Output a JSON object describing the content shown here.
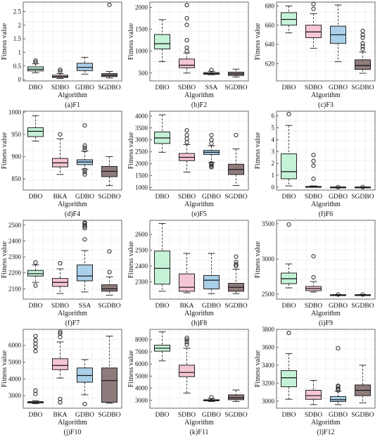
{
  "panel_style": {
    "box_colors": [
      "#c4f2d6",
      "#f5c6d3",
      "#aad0ea",
      "#8e7b7b"
    ],
    "outline": "#222222",
    "grid": "#e6e6e6"
  },
  "chart_data": [
    {
      "type": "box",
      "caption": "(a)F1",
      "ylabel": "Fitness value",
      "xlabel": "Algorithm",
      "ylim": [
        -0.05,
        2.85
      ],
      "yticks": [
        "0",
        "0.5",
        "1",
        "1.5",
        "2",
        "2.5"
      ],
      "ytick_values": [
        0,
        0.5,
        1,
        1.5,
        2,
        2.5
      ],
      "categories": [
        "DBO",
        "SDBO",
        "GDBO",
        "SGDBO"
      ],
      "boxes": [
        {
          "min": 0.25,
          "q1": 0.32,
          "median": 0.38,
          "q3": 0.47,
          "max": 0.58,
          "outliers": [
            0.64,
            0.7
          ]
        },
        {
          "min": 0.04,
          "q1": 0.08,
          "median": 0.11,
          "q3": 0.16,
          "max": 0.22,
          "outliers": [
            0.3,
            0.36
          ]
        },
        {
          "min": 0.2,
          "q1": 0.33,
          "median": 0.45,
          "q3": 0.6,
          "max": 0.82,
          "outliers": []
        },
        {
          "min": 0.06,
          "q1": 0.11,
          "median": 0.16,
          "q3": 0.22,
          "max": 0.3,
          "outliers": [
            2.75
          ]
        }
      ]
    },
    {
      "type": "box",
      "caption": "(b)F2",
      "ylabel": "Fitness value",
      "xlabel": "Algorithm",
      "ylim": [
        320,
        2120
      ],
      "yticks": [
        "500",
        "1000",
        "1500",
        "2000"
      ],
      "ytick_values": [
        500,
        1000,
        1500,
        2000
      ],
      "categories": [
        "DBO",
        "SDBO",
        "SSA",
        "SGDBO"
      ],
      "boxes": [
        {
          "min": 760,
          "q1": 1050,
          "median": 1170,
          "q3": 1380,
          "max": 1720,
          "outliers": []
        },
        {
          "min": 500,
          "q1": 620,
          "median": 680,
          "q3": 820,
          "max": 960,
          "outliers": [
            1000,
            1080,
            1250,
            1600,
            1750,
            2050
          ]
        },
        {
          "min": 460,
          "q1": 470,
          "median": 490,
          "q3": 510,
          "max": 540,
          "outliers": [
            570
          ]
        },
        {
          "min": 410,
          "q1": 445,
          "median": 480,
          "q3": 520,
          "max": 590,
          "outliers": []
        }
      ]
    },
    {
      "type": "box",
      "caption": "(c)F3",
      "ylabel": "Fitness value",
      "xlabel": "Algorithm",
      "ylim": [
        602,
        684
      ],
      "yticks": [
        "620",
        "640",
        "660",
        "680"
      ],
      "ytick_values": [
        620,
        640,
        660,
        680
      ],
      "categories": [
        "DBO",
        "SDBO",
        "GDBO",
        "SGDBO"
      ],
      "boxes": [
        {
          "min": 652,
          "q1": 660,
          "median": 666,
          "q3": 673,
          "max": 680,
          "outliers": []
        },
        {
          "min": 636,
          "q1": 647,
          "median": 653,
          "q3": 660,
          "max": 672,
          "outliers": [
            677,
            682
          ]
        },
        {
          "min": 622,
          "q1": 641,
          "median": 650,
          "q3": 659,
          "max": 681,
          "outliers": []
        },
        {
          "min": 610,
          "q1": 614,
          "median": 618,
          "q3": 624,
          "max": 632,
          "outliers": [
            635,
            638,
            641,
            647,
            650,
            654
          ]
        }
      ]
    },
    {
      "type": "box",
      "caption": "(d)F4",
      "ylabel": "Fitness value",
      "xlabel": "Algorithm",
      "ylim": [
        825,
        1002
      ],
      "yticks": [
        "850",
        "900",
        "950",
        "1000"
      ],
      "ytick_values": [
        850,
        900,
        950,
        1000
      ],
      "categories": [
        "DBO",
        "BKA",
        "GDBO",
        "SGDBO"
      ],
      "boxes": [
        {
          "min": 935,
          "q1": 945,
          "median": 957,
          "q3": 965,
          "max": 992,
          "outliers": []
        },
        {
          "min": 860,
          "q1": 877,
          "median": 886,
          "q3": 896,
          "max": 940,
          "outliers": [
            950
          ]
        },
        {
          "min": 872,
          "q1": 882,
          "median": 888,
          "q3": 893,
          "max": 912,
          "outliers": [
            860,
            865,
            870,
            915,
            920,
            925,
            970
          ]
        },
        {
          "min": 835,
          "q1": 855,
          "median": 867,
          "q3": 878,
          "max": 900,
          "outliers": []
        }
      ]
    },
    {
      "type": "box",
      "caption": "(e)F5",
      "ylabel": "Fitness value",
      "xlabel": "Algorithm",
      "ylim": [
        900,
        4200
      ],
      "yticks": [
        "1000",
        "1500",
        "2000",
        "2500",
        "3000",
        "3500",
        "4000"
      ],
      "ytick_values": [
        1000,
        1500,
        2000,
        2500,
        3000,
        3500,
        4000
      ],
      "categories": [
        "DBO",
        "SDBO",
        "GDBO",
        "SGDBO"
      ],
      "boxes": [
        {
          "min": 2480,
          "q1": 2850,
          "median": 3080,
          "q3": 3330,
          "max": 4050,
          "outliers": []
        },
        {
          "min": 1650,
          "q1": 2130,
          "median": 2270,
          "q3": 2430,
          "max": 2800,
          "outliers": [
            2900,
            3050,
            3200,
            3400
          ]
        },
        {
          "min": 2050,
          "q1": 2390,
          "median": 2480,
          "q3": 2560,
          "max": 2750,
          "outliers": [
            1850,
            1900,
            1960,
            2020,
            2850,
            3000,
            3200
          ]
        },
        {
          "min": 1090,
          "q1": 1550,
          "median": 1760,
          "q3": 1980,
          "max": 2620,
          "outliers": [
            3200
          ]
        }
      ]
    },
    {
      "type": "box",
      "caption": "(f)F6",
      "ylabel": "Fitness value",
      "xlabel": "Algorithm",
      "ylim": [
        -0.25,
        6.4
      ],
      "yticks": [
        "0",
        "1",
        "2",
        "3",
        "4",
        "5",
        "6"
      ],
      "ytick_values": [
        0,
        1,
        2,
        3,
        4,
        5,
        6
      ],
      "categories": [
        "DBO",
        "SDBO",
        "GDBO",
        "SGDBO"
      ],
      "boxes": [
        {
          "min": 0.1,
          "q1": 0.7,
          "median": 1.3,
          "q3": 2.8,
          "max": 5.2,
          "outliers": [
            6.15
          ]
        },
        {
          "min": 0,
          "q1": 0,
          "median": 0.02,
          "q3": 0.05,
          "max": 0.1,
          "outliers": [
            0.7,
            1.8,
            2.2,
            2.7
          ]
        },
        {
          "min": 0,
          "q1": 0,
          "median": 0,
          "q3": 0,
          "max": 0,
          "outliers": [
            0
          ]
        },
        {
          "min": 0,
          "q1": 0,
          "median": 0,
          "q3": 0,
          "max": 0,
          "outliers": [
            0
          ]
        }
      ]
    },
    {
      "type": "box",
      "caption": "(f)F7",
      "ylabel": "Fitness value",
      "xlabel": "Algorithm",
      "ylim": [
        2035,
        2530
      ],
      "yticks": [
        "2100",
        "2200",
        "2300",
        "2400",
        "2500"
      ],
      "ytick_values": [
        2100,
        2200,
        2300,
        2400,
        2500
      ],
      "categories": [
        "DBO",
        "SDBO",
        "SSA",
        "SGDBO"
      ],
      "boxes": [
        {
          "min": 2140,
          "q1": 2180,
          "median": 2195,
          "q3": 2215,
          "max": 2250,
          "outliers": [
            2120,
            2265
          ]
        },
        {
          "min": 2070,
          "q1": 2115,
          "median": 2140,
          "q3": 2165,
          "max": 2225,
          "outliers": [
            2260
          ]
        },
        {
          "min": 2080,
          "q1": 2150,
          "median": 2180,
          "q3": 2250,
          "max": 2340,
          "outliers": [
            2410,
            2480,
            2490,
            2500,
            2510,
            2515
          ]
        },
        {
          "min": 2060,
          "q1": 2085,
          "median": 2100,
          "q3": 2125,
          "max": 2175,
          "outliers": [
            2205,
            2335
          ]
        }
      ]
    },
    {
      "type": "box",
      "caption": "(h)F8",
      "ylabel": "Fitness value",
      "xlabel": "Algorithm",
      "ylim": [
        2190,
        2690
      ],
      "yticks": [
        "2300",
        "2400",
        "2500",
        "2600"
      ],
      "ytick_values": [
        2300,
        2400,
        2500,
        2600
      ],
      "categories": [
        "DBO",
        "BKA",
        "GDBO",
        "SGDBO"
      ],
      "boxes": [
        {
          "min": 2240,
          "q1": 2285,
          "median": 2385,
          "q3": 2495,
          "max": 2670,
          "outliers": []
        },
        {
          "min": 2230,
          "q1": 2240,
          "median": 2265,
          "q3": 2350,
          "max": 2480,
          "outliers": []
        },
        {
          "min": 2225,
          "q1": 2255,
          "median": 2310,
          "q3": 2340,
          "max": 2480,
          "outliers": []
        },
        {
          "min": 2225,
          "q1": 2240,
          "median": 2265,
          "q3": 2290,
          "max": 2380,
          "outliers": [
            2400,
            2410,
            2425,
            2460
          ]
        }
      ]
    },
    {
      "type": "box",
      "caption": "(i)F9",
      "ylabel": "Fitness value",
      "xlabel": "Algorithm",
      "ylim": [
        2430,
        3550
      ],
      "yticks": [
        "2500",
        "3000",
        "3500"
      ],
      "ytick_values": [
        2500,
        3000,
        3500
      ],
      "categories": [
        "DBO",
        "SDBO",
        "GDBO",
        "SGDBO"
      ],
      "boxes": [
        {
          "min": 2590,
          "q1": 2650,
          "median": 2720,
          "q3": 2800,
          "max": 2930,
          "outliers": [
            3490
          ]
        },
        {
          "min": 2530,
          "q1": 2550,
          "median": 2580,
          "q3": 2610,
          "max": 2680,
          "outliers": [
            2740,
            3040
          ]
        },
        {
          "min": 2480,
          "q1": 2485,
          "median": 2490,
          "q3": 2492,
          "max": 2495,
          "outliers": [
            2495
          ]
        },
        {
          "min": 2480,
          "q1": 2485,
          "median": 2490,
          "q3": 2492,
          "max": 2495,
          "outliers": [
            2495
          ]
        }
      ]
    },
    {
      "type": "box",
      "caption": "(j)F10",
      "ylabel": "Fitness value",
      "xlabel": "Algorithm",
      "ylim": [
        2250,
        6950
      ],
      "yticks": [
        "3000",
        "4000",
        "5000",
        "6000"
      ],
      "ytick_values": [
        3000,
        4000,
        5000,
        6000
      ],
      "categories": [
        "DBO",
        "BKA",
        "GDBO",
        "SGDBO"
      ],
      "boxes": [
        {
          "min": 2520,
          "q1": 2570,
          "median": 2600,
          "q3": 2640,
          "max": 2700,
          "outliers": [
            3100,
            3300,
            5650,
            5900,
            6100,
            6300,
            6550
          ]
        },
        {
          "min": 4050,
          "q1": 4550,
          "median": 4800,
          "q3": 5200,
          "max": 6200,
          "outliers": [
            2600,
            2800,
            6500,
            6700,
            6800
          ]
        },
        {
          "min": 3050,
          "q1": 3800,
          "median": 4200,
          "q3": 4650,
          "max": 5150,
          "outliers": [
            2500
          ]
        },
        {
          "min": 2550,
          "q1": 2600,
          "median": 3900,
          "q3": 4650,
          "max": 6550,
          "outliers": []
        }
      ]
    },
    {
      "type": "box",
      "caption": "(k)F11",
      "ylabel": "Fitness value",
      "xlabel": "Algorithm",
      "ylim": [
        2350,
        8850
      ],
      "yticks": [
        "3000",
        "4000",
        "5000",
        "6000",
        "7000",
        "8000"
      ],
      "ytick_values": [
        3000,
        4000,
        5000,
        6000,
        7000,
        8000
      ],
      "categories": [
        "DBO",
        "SDBO",
        "GDBO",
        "SGDBO"
      ],
      "boxes": [
        {
          "min": 6250,
          "q1": 7050,
          "median": 7300,
          "q3": 7550,
          "max": 8650,
          "outliers": []
        },
        {
          "min": 3600,
          "q1": 4950,
          "median": 5300,
          "q3": 5900,
          "max": 7300,
          "outliers": [
            7600,
            7800,
            8000,
            8150
          ]
        },
        {
          "min": 2900,
          "q1": 2960,
          "median": 3000,
          "q3": 3050,
          "max": 3150,
          "outliers": [
            3250
          ]
        },
        {
          "min": 2900,
          "q1": 3050,
          "median": 3200,
          "q3": 3450,
          "max": 3850,
          "outliers": []
        }
      ]
    },
    {
      "type": "box",
      "caption": "(l)F12",
      "ylabel": "Fitness value",
      "xlabel": "Algorithm",
      "ylim": [
        2920,
        3800
      ],
      "yticks": [
        "3000",
        "3200",
        "3400",
        "3600",
        "3800"
      ],
      "ytick_values": [
        3000,
        3200,
        3400,
        3600,
        3800
      ],
      "categories": [
        "DBO",
        "SDBO",
        "GDBO",
        "SGDBO"
      ],
      "boxes": [
        {
          "min": 3020,
          "q1": 3160,
          "median": 3260,
          "q3": 3340,
          "max": 3530,
          "outliers": [
            3760
          ]
        },
        {
          "min": 2960,
          "q1": 3020,
          "median": 3060,
          "q3": 3120,
          "max": 3230,
          "outliers": []
        },
        {
          "min": 2960,
          "q1": 2995,
          "median": 3015,
          "q3": 3050,
          "max": 3110,
          "outliers": [
            3120,
            3140,
            3160,
            3170,
            3590
          ]
        },
        {
          "min": 2980,
          "q1": 3060,
          "median": 3120,
          "q3": 3180,
          "max": 3400,
          "outliers": []
        }
      ]
    }
  ]
}
